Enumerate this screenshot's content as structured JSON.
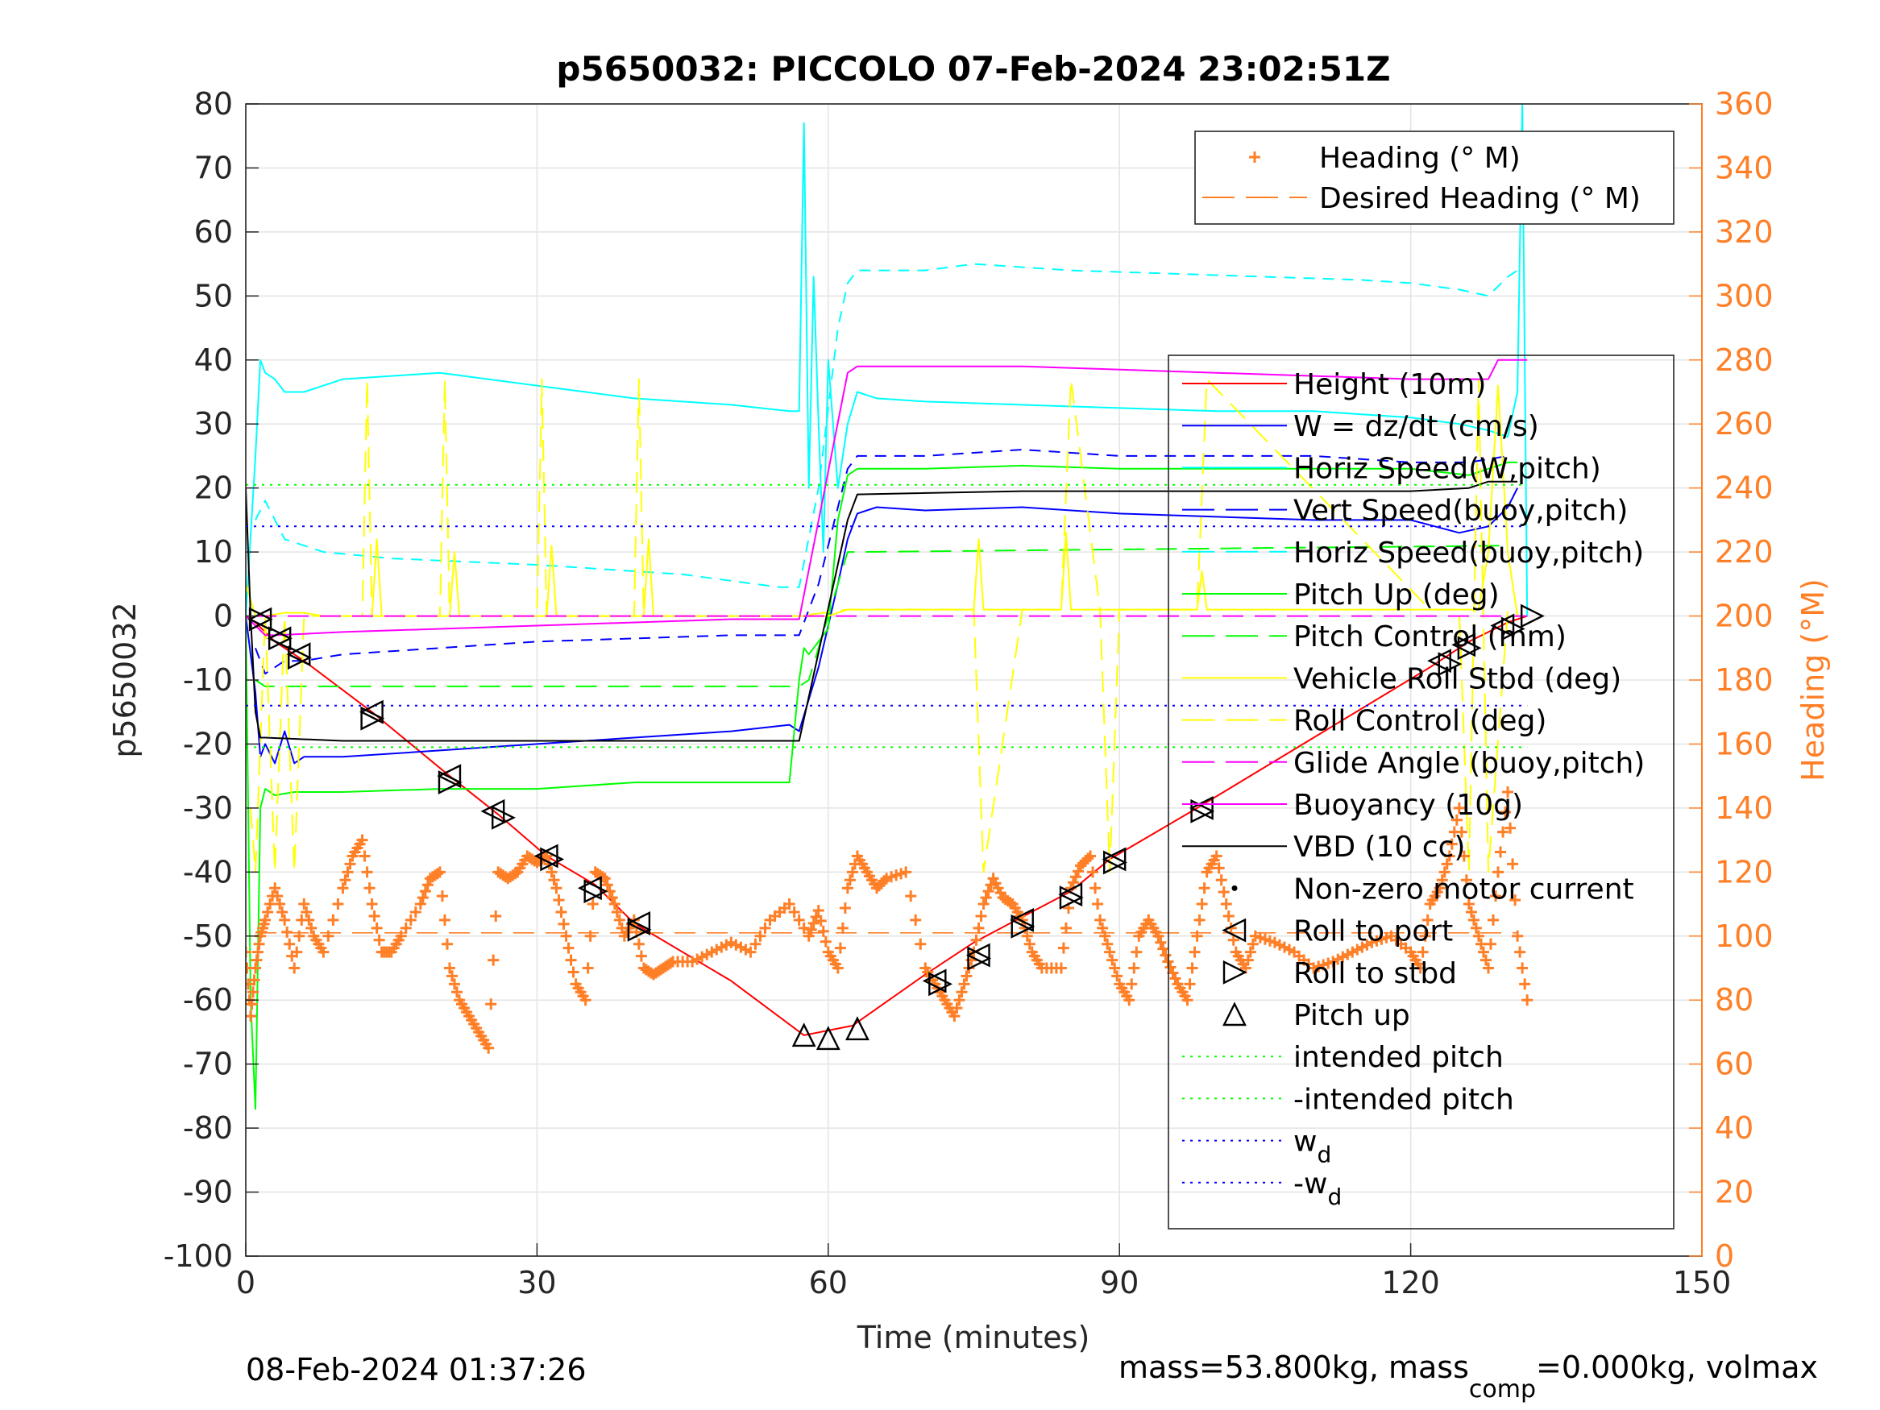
{
  "chart_data": {
    "type": "line",
    "title": "p5650032: PICCOLO 07-Feb-2024 23:02:51Z",
    "xlabel": "Time (minutes)",
    "ylabel": "p5650032",
    "y2label": "Heading (°M)",
    "xlim": [
      0,
      150
    ],
    "ylim": [
      -100,
      80
    ],
    "y2lim": [
      0,
      360
    ],
    "xticks": [
      "0",
      "30",
      "60",
      "90",
      "120",
      "150"
    ],
    "yticks": [
      "80",
      "70",
      "60",
      "50",
      "40",
      "30",
      "20",
      "10",
      "0",
      "-10",
      "-20",
      "-30",
      "-40",
      "-50",
      "-60",
      "-70",
      "-80",
      "-90",
      "-100"
    ],
    "y2ticks": [
      "360",
      "340",
      "320",
      "300",
      "280",
      "260",
      "240",
      "220",
      "200",
      "180",
      "160",
      "140",
      "120",
      "100",
      "80",
      "60",
      "40",
      "20",
      "0"
    ],
    "grid": true,
    "legend_top": [
      {
        "name": "Heading (° M)",
        "color": "#ff7f27",
        "style": "plus"
      },
      {
        "name": "Desired Heading (° M)",
        "color": "#ff7f27",
        "style": "dash"
      }
    ],
    "legend_main": [
      {
        "name": "Height (10m)",
        "color": "#ff0000",
        "style": "solid"
      },
      {
        "name": "W = dz/dt (cm/s)",
        "color": "#0000ff",
        "style": "solid"
      },
      {
        "name": "Horiz Speed(W,pitch)",
        "color": "#00ffff",
        "style": "solid"
      },
      {
        "name": "Vert Speed(buoy,pitch)",
        "color": "#0000ff",
        "style": "dash"
      },
      {
        "name": "Horiz Speed(buoy,pitch)",
        "color": "#00ffff",
        "style": "dash"
      },
      {
        "name": "Pitch Up (deg)",
        "color": "#00ff00",
        "style": "solid"
      },
      {
        "name": "Pitch Control (mm)",
        "color": "#00ff00",
        "style": "dash"
      },
      {
        "name": "Vehicle Roll Stbd (deg)",
        "color": "#ffff00",
        "style": "solid"
      },
      {
        "name": "Roll Control (deg)",
        "color": "#ffff00",
        "style": "dash"
      },
      {
        "name": "Glide Angle (buoy,pitch)",
        "color": "#ff00ff",
        "style": "dash"
      },
      {
        "name": "Buoyancy (10g)",
        "color": "#ff00ff",
        "style": "solid"
      },
      {
        "name": "VBD (10 cc)",
        "color": "#000000",
        "style": "solid"
      },
      {
        "name": "Non-zero motor current",
        "color": "#000000",
        "style": "dot"
      },
      {
        "name": "Roll to port",
        "color": "#000000",
        "style": "tri-left"
      },
      {
        "name": "Roll to stbd",
        "color": "#000000",
        "style": "tri-right"
      },
      {
        "name": "Pitch up",
        "color": "#000000",
        "style": "tri-up"
      },
      {
        "name": "intended pitch",
        "color": "#00ff00",
        "style": "dotted"
      },
      {
        "name": "-intended pitch",
        "color": "#00ff00",
        "style": "dotted"
      },
      {
        "name": "w",
        "sub": "d",
        "color": "#0000ff",
        "style": "dotted"
      },
      {
        "name": "-w",
        "sub": "d",
        "color": "#0000ff",
        "style": "dotted"
      }
    ],
    "series": [
      {
        "name": "Height (10m)",
        "color": "#ff0000",
        "dash": "",
        "x": [
          0,
          1,
          3,
          6,
          13,
          21,
          26,
          31,
          36,
          40,
          50,
          57.5,
          62.5,
          70,
          75,
          80,
          85,
          89,
          98,
          122,
          126,
          130,
          132
        ],
        "y": [
          0,
          -1,
          -4,
          -7,
          -15,
          -25,
          -31,
          -37.5,
          -42,
          -48,
          -57,
          -65.5,
          -64,
          -56,
          -51,
          -47,
          -43,
          -38,
          -30,
          -8,
          -4,
          -1,
          0
        ]
      },
      {
        "name": "W = dz/dt (cm/s)",
        "color": "#0000ff",
        "dash": "",
        "x": [
          0,
          1,
          1.5,
          2,
          3,
          4,
          5,
          6,
          10,
          20,
          30,
          40,
          50,
          56,
          57,
          59,
          61,
          62,
          63,
          65,
          70,
          80,
          90,
          100,
          110,
          120,
          125,
          128,
          130,
          131
        ],
        "y": [
          0,
          -12,
          -22,
          -20,
          -23,
          -18,
          -23,
          -22,
          -22,
          -21,
          -20,
          -19,
          -18,
          -17,
          -18,
          -8,
          5,
          12,
          16,
          17,
          16.5,
          17,
          16,
          15.5,
          15,
          15,
          13,
          14,
          17,
          20
        ]
      },
      {
        "name": "Horiz Speed(W,pitch)",
        "color": "#00ffff",
        "dash": "",
        "x": [
          0,
          1,
          1.5,
          2,
          3,
          4,
          6,
          10,
          20,
          30,
          40,
          50,
          56,
          57,
          57.5,
          58,
          58.5,
          59,
          59.5,
          60,
          61,
          62,
          63,
          65,
          70,
          80,
          90,
          100,
          110,
          120,
          125,
          128,
          130,
          131,
          131.5,
          132
        ],
        "y": [
          0,
          25,
          40,
          38,
          37,
          35,
          35,
          37,
          38,
          36,
          34,
          33,
          32,
          32,
          77,
          20,
          53,
          30,
          10,
          40,
          20,
          30,
          35,
          34,
          33.5,
          33,
          32.5,
          32,
          32,
          31,
          30,
          29,
          28,
          35,
          80,
          0
        ]
      },
      {
        "name": "Vert Speed(buoy,pitch)",
        "color": "#0000ff",
        "dash": "14,10",
        "x": [
          1,
          2,
          4,
          6,
          10,
          20,
          30,
          40,
          50,
          57,
          59,
          61,
          62,
          63,
          70,
          80,
          90,
          100,
          110,
          120,
          126,
          130
        ],
        "y": [
          -5,
          -9,
          -7,
          -7,
          -6,
          -5,
          -4,
          -3.5,
          -3,
          -3,
          5,
          17,
          23,
          25,
          25,
          26,
          25,
          25,
          25,
          24,
          24,
          25
        ]
      },
      {
        "name": "Horiz Speed(buoy,pitch)",
        "color": "#00ffff",
        "dash": "14,10",
        "x": [
          1,
          2,
          4,
          8,
          15,
          30,
          45,
          55,
          57,
          59,
          61,
          62,
          63,
          70,
          75,
          85,
          95,
          105,
          115,
          120,
          125,
          128,
          130,
          131
        ],
        "y": [
          15,
          18,
          12,
          10,
          9,
          8,
          6.5,
          4.5,
          4.5,
          20,
          45,
          52,
          54,
          54,
          55,
          54,
          53.5,
          53,
          52.5,
          52,
          51,
          50,
          53,
          54
        ]
      },
      {
        "name": "Pitch Up (deg)",
        "color": "#00ff00",
        "dash": "",
        "x": [
          0,
          0.5,
          1,
          1.5,
          2,
          3,
          5,
          10,
          20,
          30,
          40,
          50,
          56,
          57,
          57.5,
          58,
          60,
          61,
          62,
          63,
          70,
          80,
          90,
          100,
          110,
          120,
          126,
          130,
          131
        ],
        "y": [
          0,
          -60,
          -77,
          -30,
          -27,
          -28,
          -27.5,
          -27.5,
          -27,
          -27,
          -26,
          -26,
          -26,
          -10,
          -5,
          -6,
          -2,
          15,
          22,
          23,
          23,
          23.5,
          23,
          23,
          23,
          23,
          22,
          24,
          24
        ]
      },
      {
        "name": "Pitch Control (mm)",
        "color": "#00ff00",
        "dash": "26,14",
        "x": [
          1,
          2,
          57,
          58,
          62,
          63,
          130
        ],
        "y": [
          -10,
          -11,
          -11,
          -10,
          10,
          10,
          11
        ]
      },
      {
        "name": "Vehicle Roll Stbd (deg)",
        "color": "#ffff00",
        "dash": "",
        "x": [
          0,
          1,
          2,
          4,
          6,
          8,
          10,
          12,
          13,
          13.5,
          14,
          20,
          21,
          21.5,
          22,
          30,
          31,
          31.5,
          32,
          40,
          41,
          41.5,
          42,
          50,
          57,
          60,
          62,
          70,
          75,
          75.5,
          76,
          80,
          84,
          84.5,
          85,
          90,
          98,
          98.5,
          99,
          110,
          120,
          127,
          128,
          129,
          130,
          131
        ],
        "y": [
          5,
          0,
          0,
          0.5,
          0.5,
          0,
          0,
          0,
          0,
          12,
          0,
          0,
          0,
          10,
          0,
          0,
          0,
          11,
          0,
          0,
          0,
          12,
          0,
          0,
          0,
          0,
          1,
          1,
          1,
          12,
          1,
          1,
          1,
          13,
          1,
          1,
          1,
          7,
          1,
          1,
          1,
          1,
          10,
          36,
          10,
          0
        ]
      },
      {
        "name": "Roll Control (deg)",
        "color": "#ffff00",
        "dash": "26,14",
        "x": [
          0.5,
          1,
          2,
          3,
          4,
          5,
          6,
          8,
          12,
          12.5,
          13,
          20,
          20.5,
          21,
          30,
          30.5,
          31,
          40,
          40.5,
          41,
          57,
          62,
          70,
          75,
          76,
          80,
          84,
          85,
          88,
          89,
          90,
          98,
          99,
          122,
          125,
          126,
          127,
          128,
          130
        ],
        "y": [
          -30,
          -40,
          0,
          -40,
          0,
          -40,
          0,
          0,
          0,
          37,
          0,
          0,
          37,
          0,
          0,
          37,
          0,
          0,
          37,
          0,
          0,
          1,
          1,
          1,
          -40,
          1,
          1,
          37,
          1,
          -40,
          1,
          1,
          37,
          1,
          1,
          -40,
          37,
          -40,
          1
        ]
      },
      {
        "name": "Glide Angle (buoy,pitch)",
        "color": "#ff00ff",
        "dash": "26,14",
        "x": [
          1,
          132
        ],
        "y": [
          0,
          0
        ]
      },
      {
        "name": "Buoyancy (10g)",
        "color": "#ff00ff",
        "dash": "",
        "x": [
          0,
          1,
          2,
          3,
          10,
          30,
          50,
          57,
          62,
          63,
          80,
          100,
          110,
          120,
          128,
          129,
          132
        ],
        "y": [
          0,
          -1.5,
          -3,
          -3,
          -2.5,
          -1.5,
          -0.5,
          -0.5,
          38,
          39,
          39,
          38,
          37.5,
          37,
          37,
          40,
          40
        ]
      },
      {
        "name": "VBD (10 cc)",
        "color": "#000000",
        "dash": "",
        "x": [
          0,
          0.5,
          1,
          1.5,
          2,
          10,
          30,
          57,
          62,
          63,
          80,
          100,
          120,
          126,
          128,
          130,
          131
        ],
        "y": [
          20,
          0,
          -15,
          -19,
          -19,
          -19.5,
          -19.5,
          -19.5,
          15,
          19,
          19.5,
          19.5,
          19.5,
          20,
          21,
          21,
          21
        ]
      },
      {
        "name": "intended pitch",
        "color": "#00ff00",
        "dash": "3,7",
        "x": [
          0,
          132
        ],
        "y": [
          20.5,
          20.5
        ]
      },
      {
        "name": "-intended pitch",
        "color": "#00ff00",
        "dash": "3,7",
        "x": [
          0,
          132
        ],
        "y": [
          -20.5,
          -20.5
        ]
      },
      {
        "name": "w_d",
        "color": "#0000ff",
        "dash": "3,7",
        "x": [
          0,
          132
        ],
        "y": [
          14,
          14
        ]
      },
      {
        "name": "-w_d",
        "color": "#0000ff",
        "dash": "3,7",
        "x": [
          0,
          132
        ],
        "y": [
          -14,
          -14
        ]
      }
    ],
    "heading": {
      "name": "Heading (° M)",
      "color": "#ff7f27",
      "x": [
        0,
        0.5,
        1,
        1.5,
        2,
        3,
        4,
        5,
        6,
        7,
        8,
        10,
        11,
        12,
        13,
        14,
        15,
        16,
        18,
        19,
        20,
        21,
        22,
        23,
        24,
        25,
        26,
        27,
        28,
        29,
        30,
        31,
        32,
        33,
        34,
        35,
        36,
        37,
        38,
        39,
        40,
        41,
        42,
        43,
        44,
        46,
        48,
        50,
        52,
        54,
        56,
        58,
        59,
        60,
        61,
        62,
        63,
        64,
        65,
        66,
        68,
        70,
        71,
        72,
        73,
        74,
        75,
        76,
        77,
        78,
        79,
        80,
        81,
        82,
        84,
        85,
        86,
        87,
        88,
        89,
        90,
        91,
        92,
        93,
        94,
        95,
        96,
        97,
        98,
        99,
        100,
        101,
        102,
        103,
        104,
        106,
        108,
        110,
        112,
        114,
        116,
        118,
        120,
        121,
        122,
        123,
        124,
        125,
        126,
        127,
        128,
        129,
        130,
        131,
        132
      ],
      "y": [
        95,
        75,
        90,
        100,
        105,
        115,
        105,
        90,
        110,
        100,
        95,
        115,
        125,
        130,
        110,
        95,
        95,
        100,
        110,
        118,
        120,
        90,
        80,
        75,
        70,
        65,
        120,
        118,
        120,
        125,
        123,
        125,
        115,
        100,
        85,
        80,
        120,
        118,
        110,
        100,
        105,
        90,
        88,
        90,
        92,
        92,
        95,
        98,
        95,
        105,
        110,
        100,
        108,
        95,
        90,
        115,
        125,
        120,
        115,
        118,
        120,
        90,
        85,
        80,
        75,
        85,
        95,
        110,
        118,
        112,
        110,
        105,
        95,
        90,
        90,
        115,
        122,
        125,
        105,
        95,
        85,
        80,
        100,
        105,
        100,
        92,
        85,
        80,
        100,
        120,
        125,
        110,
        95,
        90,
        100,
        98,
        95,
        90,
        92,
        95,
        98,
        100,
        95,
        90,
        110,
        115,
        125,
        140,
        110,
        100,
        90,
        120,
        145,
        100,
        80
      ]
    },
    "desired_heading": {
      "name": "Desired Heading (° M)",
      "color": "#ff7f27",
      "x": [
        1,
        131
      ],
      "y": [
        101,
        101
      ]
    },
    "markers": {
      "roll_to_port": {
        "x": [
          1.5,
          3.5,
          5.5,
          13,
          21,
          25.5,
          31,
          35.5,
          40.5,
          71,
          75.5,
          80,
          85,
          89.5,
          98.5,
          123,
          125.5,
          129.5
        ],
        "y": [
          -0.5,
          -3.5,
          -6,
          -15,
          -25,
          -30.5,
          -37.5,
          -42.5,
          -48,
          -57,
          -53,
          -47.5,
          -43.5,
          -38,
          -30,
          -7,
          -4.5,
          -1.5
        ]
      },
      "roll_to_stbd": {
        "x": [
          1.5,
          3.5,
          5.5,
          13,
          21,
          26.5,
          31.5,
          36,
          40.5,
          71.5,
          75.5,
          80,
          85,
          89.5,
          98.5,
          124,
          126,
          130.5,
          132.5
        ],
        "y": [
          -0.5,
          -3.5,
          -6.5,
          -16,
          -26,
          -31.5,
          -38,
          -43,
          -49,
          -57.5,
          -53.5,
          -48.5,
          -44,
          -38.5,
          -30.5,
          -7.5,
          -5,
          -2,
          0
        ]
      },
      "pitch_up": {
        "x": [
          57.5,
          60,
          63
        ],
        "y": [
          -65.5,
          -66,
          -64.5
        ]
      }
    },
    "footer_left": "08-Feb-2024 01:37:26",
    "footer_right": {
      "a": "mass=53.800kg, mass",
      "sub": "comp",
      "b": "=0.000kg, volmax"
    }
  }
}
